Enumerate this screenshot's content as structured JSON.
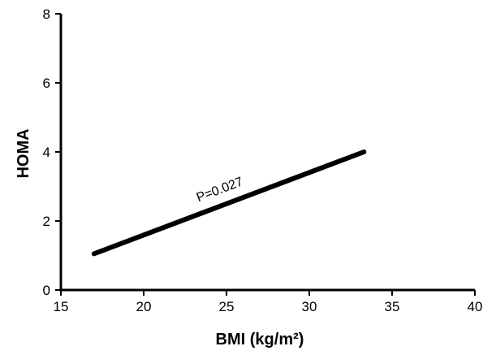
{
  "chart_data": {
    "type": "line",
    "title": "",
    "xlabel": "BMI (kg/m²)",
    "ylabel": "HOMA",
    "xlim": [
      15,
      40
    ],
    "ylim": [
      0,
      8
    ],
    "xticks": [
      15,
      20,
      25,
      30,
      35,
      40
    ],
    "yticks": [
      0,
      2,
      4,
      6,
      8
    ],
    "grid": false,
    "legend": "none",
    "series": [
      {
        "x": [
          17,
          33.3
        ],
        "y": [
          1.05,
          4.0
        ],
        "color": "#000000"
      }
    ],
    "annotations": [
      {
        "text": "P=0.027",
        "x": 23.3,
        "y": 2.55
      }
    ]
  }
}
